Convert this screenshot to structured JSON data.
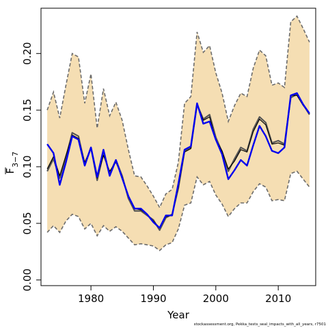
{
  "colors": {
    "band_fill": "#f5deb3",
    "band_edge": "#6b6b6b",
    "series_a": "#555555",
    "series_b": "#000000",
    "series_c": "#0000ee"
  },
  "credit_text": "stockassessment.org, Pekka_tests_seal_impacts_with_all_years, r7501",
  "chart_data": {
    "type": "line",
    "xlabel": "Year",
    "ylabel_main": "F",
    "ylabel_sub": "3−7",
    "xlim": [
      1972,
      2016
    ],
    "ylim": [
      -0.005,
      0.24
    ],
    "x_ticks": [
      1980,
      1990,
      2000,
      2010
    ],
    "x_tick_labels": [
      "1980",
      "1990",
      "2000",
      "2010"
    ],
    "y_ticks": [
      0.0,
      0.05,
      0.1,
      0.15,
      0.2
    ],
    "y_tick_labels": [
      "0.00",
      "0.05",
      "0.10",
      "0.15",
      "0.20"
    ],
    "grid": false,
    "x": [
      1973,
      1974,
      1975,
      1976,
      1977,
      1978,
      1979,
      1980,
      1981,
      1982,
      1983,
      1984,
      1985,
      1986,
      1987,
      1988,
      1989,
      1990,
      1991,
      1992,
      1993,
      1994,
      1995,
      1996,
      1997,
      1998,
      1999,
      2000,
      2001,
      2002,
      2003,
      2004,
      2005,
      2006,
      2007,
      2008,
      2009,
      2010,
      2011,
      2012,
      2013,
      2014,
      2015
    ],
    "band_upper": [
      0.15,
      0.166,
      0.143,
      0.172,
      0.2,
      0.197,
      0.156,
      0.182,
      0.134,
      0.169,
      0.145,
      0.157,
      0.141,
      0.115,
      0.092,
      0.091,
      0.083,
      0.074,
      0.064,
      0.076,
      0.08,
      0.104,
      0.156,
      0.162,
      0.219,
      0.201,
      0.207,
      0.183,
      0.165,
      0.14,
      0.154,
      0.165,
      0.162,
      0.187,
      0.203,
      0.198,
      0.172,
      0.174,
      0.17,
      0.228,
      0.233,
      0.222,
      0.21
    ],
    "band_lower": [
      0.042,
      0.048,
      0.042,
      0.052,
      0.058,
      0.056,
      0.045,
      0.05,
      0.039,
      0.048,
      0.043,
      0.047,
      0.043,
      0.037,
      0.031,
      0.032,
      0.031,
      0.03,
      0.026,
      0.031,
      0.033,
      0.045,
      0.066,
      0.068,
      0.091,
      0.084,
      0.087,
      0.075,
      0.067,
      0.056,
      0.063,
      0.068,
      0.068,
      0.078,
      0.085,
      0.082,
      0.07,
      0.071,
      0.07,
      0.094,
      0.096,
      0.089,
      0.082
    ],
    "series": [
      {
        "values": [
          0.096,
          0.107,
          0.09,
          0.108,
          0.13,
          0.127,
          0.102,
          0.117,
          0.088,
          0.112,
          0.094,
          0.106,
          0.092,
          0.072,
          0.061,
          0.061,
          0.057,
          0.053,
          0.044,
          0.055,
          0.058,
          0.081,
          0.114,
          0.117,
          0.155,
          0.142,
          0.146,
          0.126,
          0.113,
          0.096,
          0.107,
          0.117,
          0.114,
          0.133,
          0.144,
          0.139,
          0.121,
          0.123,
          0.12,
          0.161,
          0.164,
          0.155,
          0.146
        ]
      },
      {
        "values": [
          0.098,
          0.109,
          0.092,
          0.11,
          0.128,
          0.125,
          0.104,
          0.116,
          0.09,
          0.11,
          0.096,
          0.104,
          0.091,
          0.074,
          0.063,
          0.062,
          0.058,
          0.052,
          0.046,
          0.056,
          0.057,
          0.082,
          0.113,
          0.116,
          0.156,
          0.141,
          0.144,
          0.124,
          0.114,
          0.098,
          0.105,
          0.115,
          0.113,
          0.131,
          0.142,
          0.137,
          0.12,
          0.121,
          0.119,
          0.163,
          0.163,
          0.154,
          0.147
        ]
      },
      {
        "values": [
          0.12,
          0.112,
          0.084,
          0.104,
          0.127,
          0.124,
          0.101,
          0.117,
          0.091,
          0.115,
          0.092,
          0.106,
          0.09,
          0.074,
          0.063,
          0.063,
          0.058,
          0.051,
          0.046,
          0.057,
          0.057,
          0.085,
          0.115,
          0.118,
          0.156,
          0.138,
          0.14,
          0.124,
          0.111,
          0.089,
          0.097,
          0.106,
          0.101,
          0.119,
          0.136,
          0.127,
          0.114,
          0.112,
          0.117,
          0.163,
          0.165,
          0.155,
          0.147
        ]
      }
    ]
  }
}
